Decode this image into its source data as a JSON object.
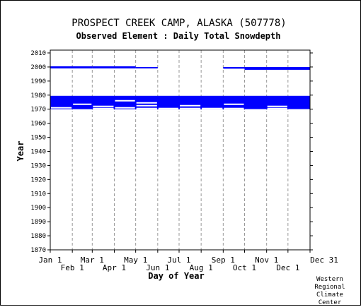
{
  "chart_data": {
    "type": "bar",
    "title": "PROSPECT CREEK CAMP, ALASKA   (507778)",
    "subtitle": "Observed Element : Daily Total Snowdepth",
    "xlabel": "Day of Year",
    "ylabel": "Year",
    "xlim": [
      1,
      366
    ],
    "ylim": [
      1870,
      2010
    ],
    "y_ticks": [
      1870,
      1880,
      1890,
      1900,
      1910,
      1920,
      1930,
      1940,
      1950,
      1960,
      1970,
      1980,
      1990,
      2000,
      2010
    ],
    "x_ticks": [
      {
        "label": "Jan 1",
        "day": 1,
        "row": 0
      },
      {
        "label": "Feb 1",
        "day": 32,
        "row": 1
      },
      {
        "label": "Mar 1",
        "day": 60,
        "row": 0
      },
      {
        "label": "Apr 1",
        "day": 91,
        "row": 1
      },
      {
        "label": "May 1",
        "day": 121,
        "row": 0
      },
      {
        "label": "Jun 1",
        "day": 152,
        "row": 1
      },
      {
        "label": "Jul 1",
        "day": 182,
        "row": 0
      },
      {
        "label": "Aug 1",
        "day": 213,
        "row": 1
      },
      {
        "label": "Sep 1",
        "day": 244,
        "row": 0
      },
      {
        "label": "Oct 1",
        "day": 274,
        "row": 1
      },
      {
        "label": "Nov 1",
        "day": 305,
        "row": 0
      },
      {
        "label": "Dec 1",
        "day": 335,
        "row": 1
      },
      {
        "label": "Dec 31",
        "day": 366,
        "row": 0
      }
    ],
    "grid": true,
    "series_color": "#0000ff",
    "gap_color": "#ffffff",
    "coverage_blocks": [
      {
        "x_start": 1,
        "x_end": 366,
        "y_start": 1970,
        "y_end": 1979.5
      },
      {
        "x_start": 1,
        "x_end": 60,
        "y_start": 1999,
        "y_end": 2000.5
      },
      {
        "x_start": 60,
        "x_end": 121,
        "y_start": 1999,
        "y_end": 2000.5
      },
      {
        "x_start": 121,
        "x_end": 152,
        "y_start": 1999,
        "y_end": 2000
      },
      {
        "x_start": 244,
        "x_end": 274,
        "y_start": 1998.8,
        "y_end": 2000
      },
      {
        "x_start": 274,
        "x_end": 366,
        "y_start": 1998,
        "y_end": 2000
      }
    ],
    "missing_segments": [
      {
        "x_start": 1,
        "x_end": 32,
        "year": 1971
      },
      {
        "x_start": 32,
        "x_end": 60,
        "year": 1973.5
      },
      {
        "x_start": 60,
        "x_end": 91,
        "year": 1972
      },
      {
        "x_start": 60,
        "x_end": 91,
        "year": 1970.5
      },
      {
        "x_start": 91,
        "x_end": 121,
        "year": 1976
      },
      {
        "x_start": 91,
        "x_end": 121,
        "year": 1971
      },
      {
        "x_start": 121,
        "x_end": 152,
        "year": 1974.5
      },
      {
        "x_start": 121,
        "x_end": 152,
        "year": 1972.5
      },
      {
        "x_start": 121,
        "x_end": 152,
        "year": 1970.5
      },
      {
        "x_start": 152,
        "x_end": 182,
        "year": 1970.5
      },
      {
        "x_start": 182,
        "x_end": 213,
        "year": 1972.5
      },
      {
        "x_start": 182,
        "x_end": 213,
        "year": 1970.5
      },
      {
        "x_start": 213,
        "x_end": 244,
        "year": 1970.5
      },
      {
        "x_start": 244,
        "x_end": 274,
        "year": 1973.5
      },
      {
        "x_start": 244,
        "x_end": 274,
        "year": 1970.5
      },
      {
        "x_start": 274,
        "x_end": 305,
        "year": 1969.5
      },
      {
        "x_start": 274,
        "x_end": 305,
        "year": 1968.8
      },
      {
        "x_start": 305,
        "x_end": 335,
        "year": 1972
      },
      {
        "x_start": 305,
        "x_end": 335,
        "year": 1970.5
      },
      {
        "x_start": 335,
        "x_end": 366,
        "year": 1969.5
      },
      {
        "x_start": 1,
        "x_end": 366,
        "year": 1969
      }
    ]
  },
  "credit": {
    "line1": "Western",
    "line2": "Regional",
    "line3": "Climate",
    "line4": "Center"
  }
}
